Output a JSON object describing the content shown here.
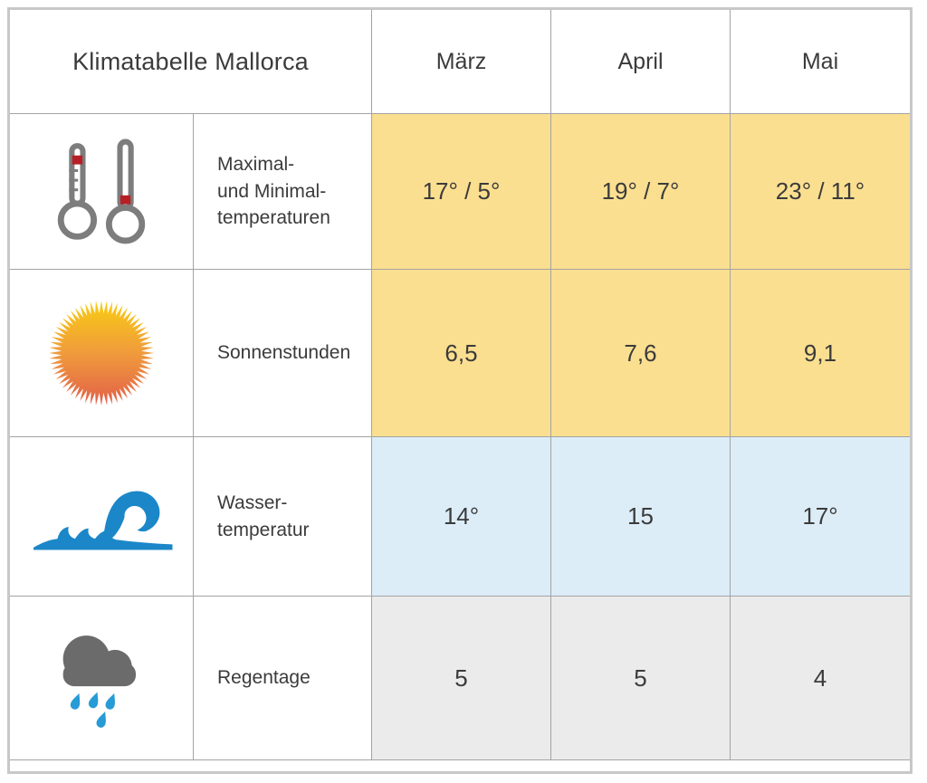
{
  "chart_data": {
    "type": "table",
    "title": "Klimatabelle Mallorca",
    "columns": [
      "März",
      "April",
      "Mai"
    ],
    "rows": [
      {
        "id": "max-min-temperatures",
        "icon": "thermometers-icon",
        "label": "Maximal-\nund Minimal-\ntemperaturen",
        "display": [
          "17° / 5°",
          "19° / 7°",
          "23° / 11°"
        ],
        "values_max": [
          17,
          19,
          23
        ],
        "values_min": [
          5,
          7,
          11
        ],
        "row_bg": "#fbdf90"
      },
      {
        "id": "sunshine-hours",
        "icon": "sun-icon",
        "label": "Sonnenstunden",
        "display": [
          "6,5",
          "7,6",
          "9,1"
        ],
        "values": [
          6.5,
          7.6,
          9.1
        ],
        "row_bg": "#fbdf90"
      },
      {
        "id": "water-temperature",
        "icon": "wave-icon",
        "label": "Wasser-\ntemperatur",
        "display": [
          "14°",
          "15",
          "17°"
        ],
        "values": [
          14,
          15,
          17
        ],
        "row_bg": "#dcedf8"
      },
      {
        "id": "rain-days",
        "icon": "rain-cloud-icon",
        "label": "Regentage",
        "display": [
          "5",
          "5",
          "4"
        ],
        "values": [
          5,
          5,
          4
        ],
        "row_bg": "#ebebeb"
      }
    ],
    "legend_position": "none",
    "grid": true
  },
  "colors": {
    "temperature_sun_row_bg": "#fbdf90",
    "water_row_bg": "#dcedf8",
    "rain_row_bg": "#ebebeb",
    "grid_line": "#a3a3a3",
    "outer_border": "#c8c8c8",
    "text": "#3b3b3b",
    "wave_blue": "#1b87c8",
    "raindrop_blue": "#279bd6",
    "cloud_gray": "#6b6b6b",
    "thermometer_gray": "#7d7d7d",
    "thermometer_red": "#b62025",
    "sun_gradient_top": "#f9cd13",
    "sun_gradient_middle": "#f09b3c",
    "sun_gradient_bottom": "#e15f49"
  }
}
